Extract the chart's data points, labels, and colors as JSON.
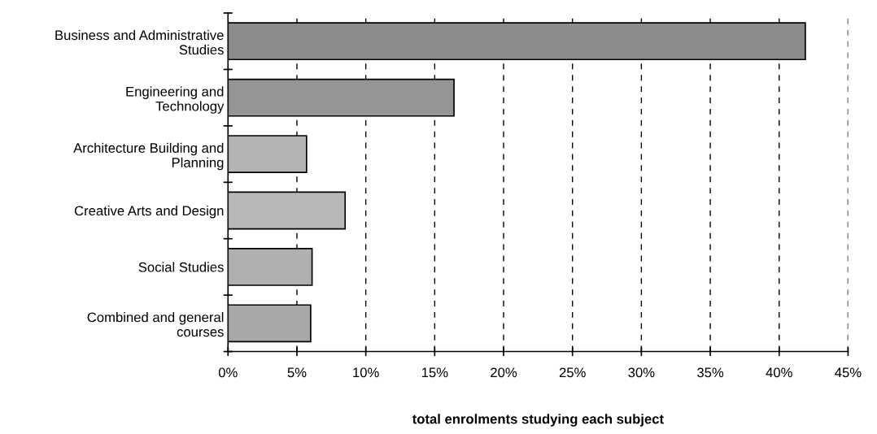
{
  "chart_data": {
    "type": "bar",
    "orientation": "horizontal",
    "categories": [
      "Business and Administrative\nStudies",
      "Engineering and\nTechnology",
      "Architecture Building and\nPlanning",
      "Creative Arts and Design",
      "Social Studies",
      "Combined and general\ncourses"
    ],
    "values": [
      41.9,
      16.4,
      5.7,
      8.5,
      6.1,
      6.0
    ],
    "colors": [
      "#8c8c8c",
      "#959595",
      "#b4b4b4",
      "#b8b8b8",
      "#b0b0b0",
      "#a8a8a8"
    ],
    "xlabel": "total enrolments studying each subject",
    "xlim": [
      0,
      45
    ],
    "xticks": [
      {
        "value": 0,
        "label": "0%"
      },
      {
        "value": 5,
        "label": "5%"
      },
      {
        "value": 10,
        "label": "10%"
      },
      {
        "value": 15,
        "label": "15%"
      },
      {
        "value": 20,
        "label": "20%"
      },
      {
        "value": 25,
        "label": "25%"
      },
      {
        "value": 30,
        "label": "30%"
      },
      {
        "value": 35,
        "label": "35%"
      },
      {
        "value": 40,
        "label": "40%"
      },
      {
        "value": 45,
        "label": "45%"
      }
    ],
    "grid": "x",
    "line_style": "dashed"
  }
}
